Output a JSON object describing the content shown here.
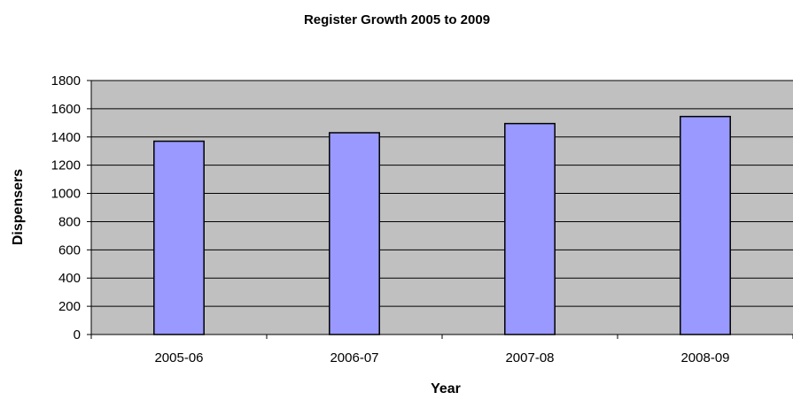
{
  "chart_data": {
    "type": "bar",
    "title": "Register Growth 2005 to 2009",
    "xlabel": "Year",
    "ylabel": "Dispensers",
    "categories": [
      "2005-06",
      "2006-07",
      "2007-08",
      "2008-09"
    ],
    "values": [
      1370,
      1430,
      1495,
      1545
    ],
    "ylim": [
      0,
      1800
    ],
    "yticks": [
      0,
      200,
      400,
      600,
      800,
      1000,
      1200,
      1400,
      1600,
      1800
    ],
    "grid": true,
    "legend": "none",
    "colors": {
      "bar_fill": "#9999ff",
      "bar_stroke": "#000000",
      "plot_background": "#c0c0c0",
      "gridline": "#000000"
    }
  }
}
